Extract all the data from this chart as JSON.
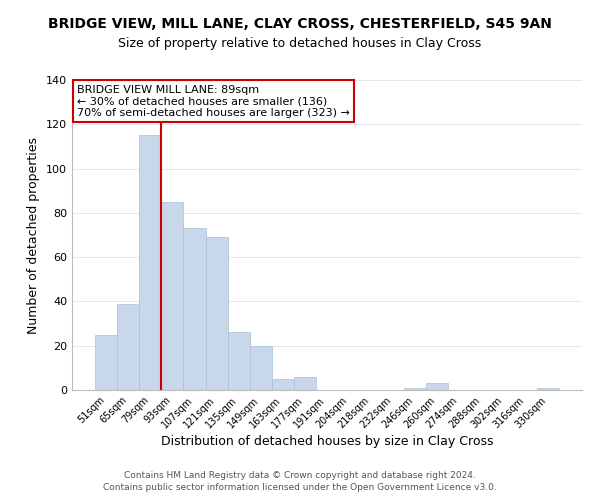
{
  "title": "BRIDGE VIEW, MILL LANE, CLAY CROSS, CHESTERFIELD, S45 9AN",
  "subtitle": "Size of property relative to detached houses in Clay Cross",
  "xlabel": "Distribution of detached houses by size in Clay Cross",
  "ylabel": "Number of detached properties",
  "bar_color": "#c8d8ea",
  "bar_edgecolor": "#a8c0d4",
  "bin_labels": [
    "51sqm",
    "65sqm",
    "79sqm",
    "93sqm",
    "107sqm",
    "121sqm",
    "135sqm",
    "149sqm",
    "163sqm",
    "177sqm",
    "191sqm",
    "204sqm",
    "218sqm",
    "232sqm",
    "246sqm",
    "260sqm",
    "274sqm",
    "288sqm",
    "302sqm",
    "316sqm",
    "330sqm"
  ],
  "bar_heights": [
    25,
    39,
    115,
    85,
    73,
    69,
    26,
    20,
    5,
    6,
    0,
    0,
    0,
    0,
    1,
    3,
    0,
    0,
    0,
    0,
    1
  ],
  "ylim": [
    0,
    140
  ],
  "yticks": [
    0,
    20,
    40,
    60,
    80,
    100,
    120,
    140
  ],
  "vline_color": "#cc0000",
  "annotation_line1": "BRIDGE VIEW MILL LANE: 89sqm",
  "annotation_line2": "← 30% of detached houses are smaller (136)",
  "annotation_line3": "70% of semi-detached houses are larger (323) →",
  "annotation_box_color": "#ffffff",
  "annotation_box_edgecolor": "#cc0000",
  "footnote1": "Contains HM Land Registry data © Crown copyright and database right 2024.",
  "footnote2": "Contains public sector information licensed under the Open Government Licence v3.0.",
  "background_color": "#ffffff",
  "grid_color": "#dde8f0"
}
